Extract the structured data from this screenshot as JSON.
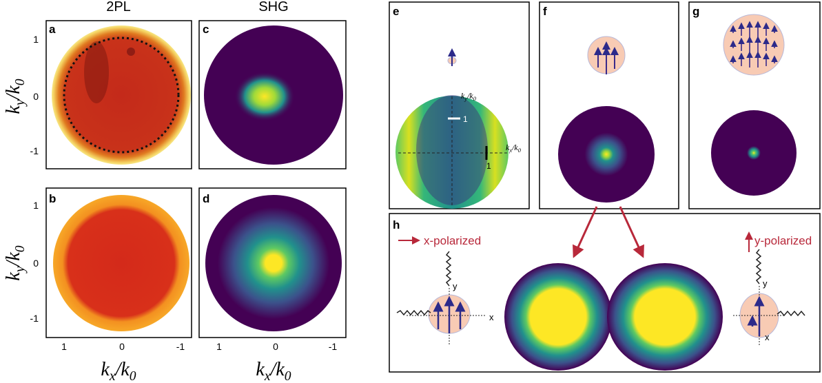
{
  "column_titles": [
    "2PL",
    "SHG"
  ],
  "panel_labels": [
    "a",
    "b",
    "c",
    "d",
    "e",
    "f",
    "g",
    "h"
  ],
  "axis_label": {
    "x": [
      "k",
      "x",
      "/k",
      "0"
    ],
    "y": [
      "k",
      "y",
      "/k",
      "0"
    ]
  },
  "ticks": [
    "1",
    "0",
    "-1"
  ],
  "panel_e": {
    "ky": [
      "k",
      "y",
      "/k",
      "0"
    ],
    "kx": [
      "k",
      "x",
      "/k",
      "0"
    ],
    "scale": [
      "1",
      "1"
    ]
  },
  "panel_h": {
    "x_polarized": "x-polarized",
    "y_polarized": "y-polarized",
    "axes": [
      "x",
      "y"
    ]
  }
}
